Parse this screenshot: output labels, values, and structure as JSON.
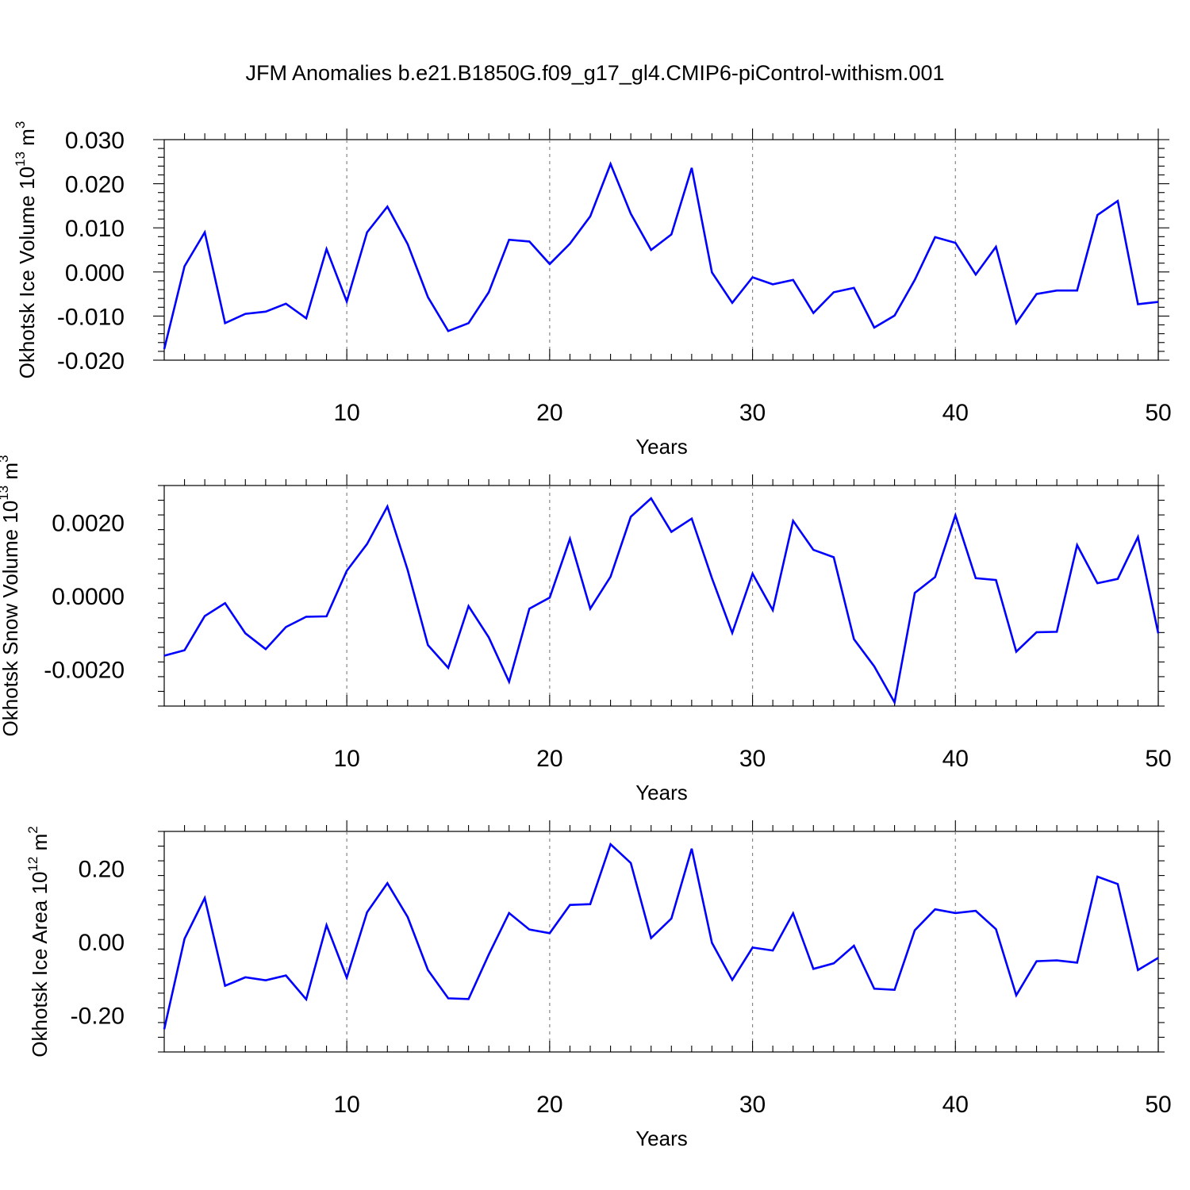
{
  "figure": {
    "title": "JFM Anomalies b.e21.B1850G.f09_g17_gl4.CMIP6-piControl-withism.001"
  },
  "chart_data": [
    {
      "type": "line",
      "ylabel": {
        "text": "Okhotsk Ice Volume 10",
        "exponent": "13",
        "unit": "m",
        "unit_exponent": "3"
      },
      "xlabel": "Years",
      "xlim": [
        1,
        50
      ],
      "ylim": [
        -0.02,
        0.03
      ],
      "xticks": [
        10,
        20,
        30,
        40,
        50
      ],
      "yticks": [
        -0.02,
        -0.01,
        0.0,
        0.01,
        0.02,
        0.03
      ],
      "ytick_labels": [
        "-0.020",
        "-0.010",
        "0.000",
        "0.010",
        "0.020",
        "0.030"
      ],
      "grid": "vertical dashed at major x ticks",
      "line_color": "#0000ff",
      "x": [
        1,
        2,
        3,
        4,
        5,
        6,
        7,
        8,
        9,
        10,
        11,
        12,
        13,
        14,
        15,
        16,
        17,
        18,
        19,
        20,
        21,
        22,
        23,
        24,
        25,
        26,
        27,
        28,
        29,
        30,
        31,
        32,
        33,
        34,
        35,
        36,
        37,
        38,
        39,
        40,
        41,
        42,
        43,
        44,
        45,
        46,
        47,
        48,
        49,
        50
      ],
      "values": [
        -0.0175,
        0.0013,
        0.009,
        -0.0116,
        -0.0095,
        -0.009,
        -0.0072,
        -0.0105,
        0.0052,
        -0.0067,
        0.009,
        0.0148,
        0.0063,
        -0.0057,
        -0.0134,
        -0.0116,
        -0.0046,
        0.0073,
        0.0069,
        0.0018,
        0.0064,
        0.0126,
        0.0245,
        0.0132,
        0.005,
        0.0085,
        0.0236,
        -0.0001,
        -0.007,
        -0.0012,
        -0.0028,
        -0.0018,
        -0.0093,
        -0.0046,
        -0.0036,
        -0.0126,
        -0.0099,
        -0.0018,
        0.0079,
        0.0066,
        -0.0006,
        0.0057,
        -0.0116,
        -0.005,
        -0.0042,
        -0.0042,
        0.0129,
        0.0161,
        -0.0073,
        -0.0068
      ]
    },
    {
      "type": "line",
      "ylabel": {
        "text": "Okhotsk Snow Volume 10",
        "exponent": "13",
        "unit": "m",
        "unit_exponent": "3"
      },
      "xlabel": "Years",
      "xlim": [
        1,
        50
      ],
      "ylim": [
        -0.003,
        0.003
      ],
      "xticks": [
        10,
        20,
        30,
        40,
        50
      ],
      "yticks": [
        -0.002,
        0.0,
        0.002
      ],
      "ytick_labels": [
        "-0.0020",
        "0.0000",
        "0.0020"
      ],
      "grid": "vertical dashed at major x ticks",
      "line_color": "#0000ff",
      "x": [
        1,
        2,
        3,
        4,
        5,
        6,
        7,
        8,
        9,
        10,
        11,
        12,
        13,
        14,
        15,
        16,
        17,
        18,
        19,
        20,
        21,
        22,
        23,
        24,
        25,
        26,
        27,
        28,
        29,
        30,
        31,
        32,
        33,
        34,
        35,
        36,
        37,
        38,
        39,
        40,
        41,
        42,
        43,
        44,
        45,
        46,
        47,
        48,
        49,
        50
      ],
      "values": [
        -0.00163,
        -0.00148,
        -0.00055,
        -0.0002,
        -0.00102,
        -0.00145,
        -0.00085,
        -0.00057,
        -0.00056,
        0.00068,
        0.00141,
        0.00243,
        0.0007,
        -0.00134,
        -0.00196,
        -0.00028,
        -0.00113,
        -0.00234,
        -0.00035,
        -5e-05,
        0.00155,
        -0.00035,
        0.00052,
        0.00215,
        0.00265,
        0.00174,
        0.0021,
        0.00048,
        -0.00101,
        0.0006,
        -0.00039,
        0.00204,
        0.00125,
        0.00105,
        -0.00118,
        -0.00192,
        -0.0029,
        8e-05,
        0.00051,
        0.00219,
        0.00048,
        0.00043,
        -0.00152,
        -0.00099,
        -0.00098,
        0.00138,
        0.00034,
        0.00046,
        0.0016,
        -0.00102
      ]
    },
    {
      "type": "line",
      "ylabel": {
        "text": "Okhotsk Ice Area 10",
        "exponent": "12",
        "unit": "m",
        "unit_exponent": "2"
      },
      "xlabel": "Years",
      "xlim": [
        1,
        50
      ],
      "ylim": [
        -0.3,
        0.3
      ],
      "xticks": [
        10,
        20,
        30,
        40,
        50
      ],
      "yticks": [
        -0.2,
        0.0,
        0.2
      ],
      "ytick_labels": [
        "-0.20",
        "0.00",
        "0.20"
      ],
      "grid": "vertical dashed at major x ticks",
      "line_color": "#0000ff",
      "x": [
        1,
        2,
        3,
        4,
        5,
        6,
        7,
        8,
        9,
        10,
        11,
        12,
        13,
        14,
        15,
        16,
        17,
        18,
        19,
        20,
        21,
        22,
        23,
        24,
        25,
        26,
        27,
        28,
        29,
        30,
        31,
        32,
        33,
        34,
        35,
        36,
        37,
        38,
        39,
        40,
        41,
        42,
        43,
        44,
        45,
        46,
        47,
        48,
        49,
        50
      ],
      "values": [
        -0.238,
        0.008,
        0.119,
        -0.12,
        -0.097,
        -0.105,
        -0.092,
        -0.157,
        0.045,
        -0.098,
        0.08,
        0.159,
        0.067,
        -0.077,
        -0.154,
        -0.156,
        -0.035,
        0.078,
        0.033,
        0.023,
        0.1,
        0.102,
        0.265,
        0.214,
        0.01,
        0.063,
        0.253,
        -0.003,
        -0.104,
        -0.016,
        -0.024,
        0.077,
        -0.074,
        -0.059,
        -0.011,
        -0.128,
        -0.131,
        0.031,
        0.088,
        0.078,
        0.084,
        0.034,
        -0.146,
        -0.053,
        -0.051,
        -0.057,
        0.177,
        0.157,
        -0.077,
        -0.044
      ]
    }
  ]
}
